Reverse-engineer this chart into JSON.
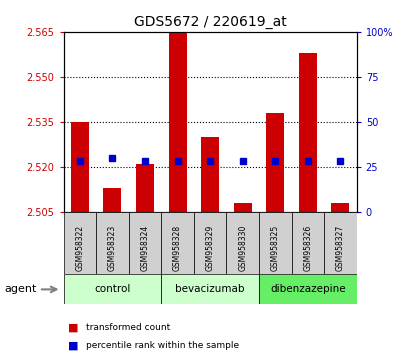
{
  "title": "GDS5672 / 220619_at",
  "samples": [
    "GSM958322",
    "GSM958323",
    "GSM958324",
    "GSM958328",
    "GSM958329",
    "GSM958330",
    "GSM958325",
    "GSM958326",
    "GSM958327"
  ],
  "groups": [
    {
      "name": "control",
      "indices": [
        0,
        1,
        2
      ],
      "color": "#ccffcc"
    },
    {
      "name": "bevacizumab",
      "indices": [
        3,
        4,
        5
      ],
      "color": "#ccffcc"
    },
    {
      "name": "dibenzazepine",
      "indices": [
        6,
        7,
        8
      ],
      "color": "#66ee66"
    }
  ],
  "transformed_counts": [
    2.535,
    2.513,
    2.521,
    2.565,
    2.53,
    2.508,
    2.538,
    2.558,
    2.508
  ],
  "percentile_ranks": [
    2.522,
    2.523,
    2.522,
    2.522,
    2.522,
    2.522,
    2.522,
    2.522,
    2.522
  ],
  "percentile_pct": [
    30,
    30,
    30,
    30,
    30,
    30,
    30,
    30,
    30
  ],
  "bar_bottom": 2.505,
  "ylim_left": [
    2.505,
    2.565
  ],
  "ylim_right": [
    0,
    100
  ],
  "yticks_left": [
    2.505,
    2.52,
    2.535,
    2.55,
    2.565
  ],
  "yticks_right": [
    0,
    25,
    50,
    75,
    100
  ],
  "bar_color": "#cc0000",
  "percentile_color": "#0000cc",
  "legend_items": [
    {
      "label": "transformed count",
      "color": "#cc0000"
    },
    {
      "label": "percentile rank within the sample",
      "color": "#0000cc"
    }
  ],
  "agent_label": "agent",
  "tick_label_color_left": "#cc0000",
  "tick_label_color_right": "#0000cc",
  "sample_box_color": "#d0d0d0",
  "group_colors": [
    "#ccffcc",
    "#ccffcc",
    "#66ee66"
  ]
}
